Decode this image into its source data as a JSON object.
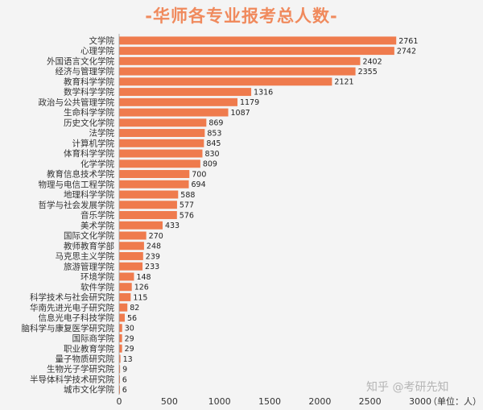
{
  "chart_data": {
    "type": "bar",
    "orientation": "horizontal",
    "title": "-华师各专业报考总人数-",
    "unit_label": "（单位：人）",
    "xlim": [
      0,
      3000
    ],
    "xticks": [
      0,
      500,
      1000,
      1500,
      2000,
      2500,
      3000
    ],
    "bar_color": "#ef7b4d",
    "categories": [
      "文学院",
      "心理学院",
      "外国语言文化学院",
      "经济与管理学院",
      "教育科学学院",
      "数学科学学院",
      "政治与公共管理学院",
      "生命科学学院",
      "历史文化学院",
      "法学院",
      "计算机学院",
      "体育科学学院",
      "化学学院",
      "教育信息技术学院",
      "物理与电信工程学院",
      "地理科学学院",
      "哲学与社会发展学院",
      "音乐学院",
      "美术学院",
      "国际文化学院",
      "教师教育学部",
      "马克思主义学院",
      "旅游管理学院",
      "环境学院",
      "软件学院",
      "科学技术与社会研究院",
      "华南先进光电子研究院",
      "信息光电子科技学院",
      "脑科学与康复医学研究院",
      "国际商学院",
      "职业教育学院",
      "量子物质研究院",
      "生物光子学研究院",
      "半导体科学技术研究院",
      "城市文化学院"
    ],
    "values": [
      2761,
      2742,
      2402,
      2355,
      2121,
      1316,
      1179,
      1087,
      869,
      853,
      845,
      830,
      809,
      700,
      694,
      588,
      577,
      576,
      433,
      270,
      248,
      239,
      233,
      148,
      126,
      115,
      82,
      56,
      30,
      29,
      29,
      13,
      9,
      6,
      6
    ]
  },
  "watermark": "知乎 @考研先知"
}
